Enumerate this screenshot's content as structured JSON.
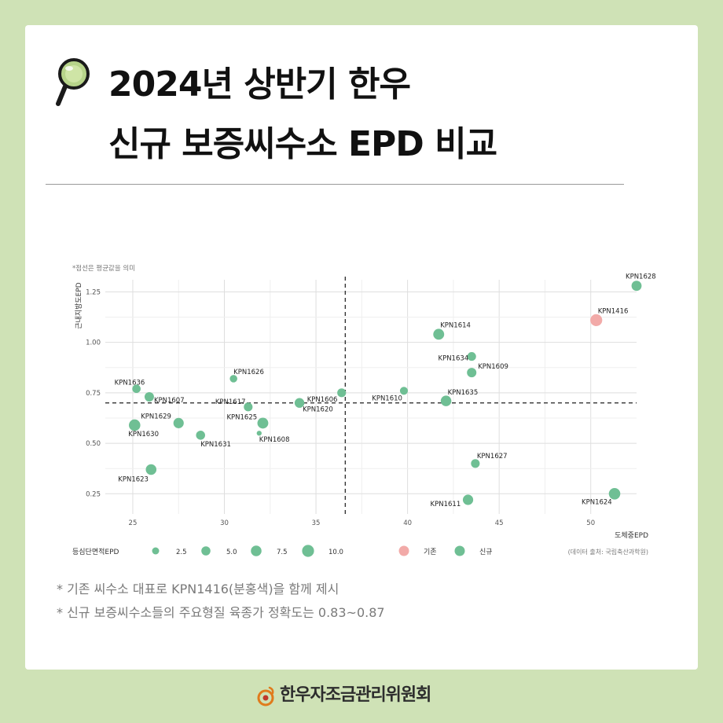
{
  "title": {
    "line1": "2024년 상반기 한우",
    "line2": "신규 보증씨수소 EPD 비교",
    "icon": "magnifier-icon"
  },
  "chart_caption": "*점선은 평균값을 의미",
  "source": "(데이터 출처: 국립축산과학원)",
  "notes": [
    "* 기존 씨수소 대표로 KPN1416(분홍색)을 함께 제시",
    "* 신규 보증씨수소들의 주요형질 육종가 정확도는 0.83~0.87"
  ],
  "footer": {
    "org": "한우자조금관리위원회",
    "icon": "hanwoo-logo-icon"
  },
  "colors": {
    "new": "#6fbf94",
    "existing": "#f2aaa8",
    "background": "#cfe2b6"
  },
  "chart_data": {
    "type": "scatter",
    "xlabel": "도체중EPD",
    "ylabel": "근내지방도EPD",
    "xlim": [
      23.5,
      52.5
    ],
    "ylim": [
      0.15,
      1.31
    ],
    "xticks": [
      25,
      30,
      35,
      40,
      45,
      50
    ],
    "yticks": [
      0.25,
      0.5,
      0.75,
      1.0,
      1.25
    ],
    "xtick_labels": [
      "25",
      "30",
      "35",
      "40",
      "45",
      "50"
    ],
    "ytick_labels": [
      "0.25",
      "0.50",
      "0.75",
      "1.00",
      "1.25"
    ],
    "grid": true,
    "mean_x": 36.6,
    "mean_y": 0.7,
    "size_legend": {
      "title": "등심단면적EPD",
      "values": [
        2.5,
        5.0,
        7.5,
        10.0
      ],
      "labels": [
        "2.5",
        "5.0",
        "7.5",
        "10.0"
      ]
    },
    "group_legend": {
      "items": [
        {
          "key": "existing",
          "label": "기존"
        },
        {
          "key": "new",
          "label": "신규"
        }
      ]
    },
    "points": [
      {
        "label": "KPN1628",
        "x": 52.5,
        "y": 1.28,
        "size": 6.5,
        "group": "new"
      },
      {
        "label": "KPN1416",
        "x": 50.3,
        "y": 1.11,
        "size": 10.0,
        "group": "existing"
      },
      {
        "label": "KPN1614",
        "x": 41.7,
        "y": 1.04,
        "size": 8.0,
        "group": "new"
      },
      {
        "label": "KPN1634",
        "x": 43.5,
        "y": 0.93,
        "size": 4.5,
        "group": "new"
      },
      {
        "label": "KPN1609",
        "x": 43.5,
        "y": 0.85,
        "size": 5.5,
        "group": "new"
      },
      {
        "label": "KPN1635",
        "x": 42.1,
        "y": 0.71,
        "size": 7.5,
        "group": "new"
      },
      {
        "label": "KPN1610",
        "x": 39.8,
        "y": 0.76,
        "size": 3.5,
        "group": "new"
      },
      {
        "label": "KPN1606",
        "x": 36.4,
        "y": 0.75,
        "size": 4.5,
        "group": "new"
      },
      {
        "label": "KPN1627",
        "x": 43.7,
        "y": 0.4,
        "size": 4.5,
        "group": "new"
      },
      {
        "label": "KPN1611",
        "x": 43.3,
        "y": 0.22,
        "size": 7.0,
        "group": "new"
      },
      {
        "label": "KPN1624",
        "x": 51.3,
        "y": 0.25,
        "size": 9.0,
        "group": "new"
      },
      {
        "label": "KPN1636",
        "x": 25.2,
        "y": 0.77,
        "size": 4.0,
        "group": "new"
      },
      {
        "label": "KPN1607",
        "x": 25.9,
        "y": 0.73,
        "size": 5.5,
        "group": "new"
      },
      {
        "label": "KPN1626",
        "x": 30.5,
        "y": 0.82,
        "size": 3.0,
        "group": "new"
      },
      {
        "label": "KPN1617",
        "x": 31.3,
        "y": 0.68,
        "size": 4.5,
        "group": "new"
      },
      {
        "label": "KPN1620",
        "x": 34.1,
        "y": 0.7,
        "size": 6.0,
        "group": "new"
      },
      {
        "label": "KPN1625",
        "x": 32.1,
        "y": 0.6,
        "size": 8.0,
        "group": "new"
      },
      {
        "label": "KPN1608",
        "x": 31.9,
        "y": 0.55,
        "size": 0.8,
        "group": "new"
      },
      {
        "label": "KPN1629",
        "x": 27.5,
        "y": 0.6,
        "size": 7.0,
        "group": "new"
      },
      {
        "label": "KPN1630",
        "x": 25.1,
        "y": 0.59,
        "size": 9.0,
        "group": "new"
      },
      {
        "label": "KPN1631",
        "x": 28.7,
        "y": 0.54,
        "size": 5.0,
        "group": "new"
      },
      {
        "label": "KPN1623",
        "x": 26.0,
        "y": 0.37,
        "size": 7.5,
        "group": "new"
      }
    ]
  }
}
